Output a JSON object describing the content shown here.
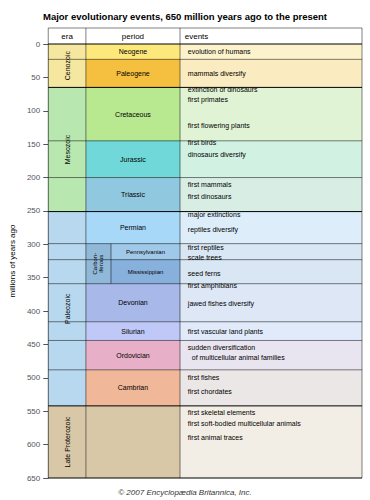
{
  "chart_data": {
    "type": "timeline",
    "title": "Major evolutionary events, 650 million years ago to the present",
    "y_label": "millions of years ago",
    "ylim": [
      0,
      650
    ],
    "yticks": [
      0,
      50,
      100,
      150,
      200,
      250,
      300,
      350,
      400,
      450,
      500,
      550,
      600,
      650
    ],
    "grid": false,
    "column_labels": [
      "era",
      "period",
      "events"
    ],
    "eras": [
      {
        "name": "Cenozoic",
        "start": 0,
        "end": 65,
        "color": "#f5e6a0"
      },
      {
        "name": "Mesozoic",
        "start": 65,
        "end": 251,
        "color": "#b8e8b0"
      },
      {
        "name": "Paleozoic",
        "start": 251,
        "end": 542,
        "color": "#b8d8f0"
      },
      {
        "name": "Late Proterozoic",
        "start": 542,
        "end": 650,
        "color": "#d8c8a8"
      }
    ],
    "periods": [
      {
        "name": "Neogene",
        "start": 0,
        "end": 23,
        "color": "#fde87c"
      },
      {
        "name": "Paleogene",
        "start": 23,
        "end": 65,
        "color": "#f5c040"
      },
      {
        "name": "Cretaceous",
        "start": 65,
        "end": 145,
        "color": "#b8e890"
      },
      {
        "name": "Jurassic",
        "start": 145,
        "end": 200,
        "color": "#70d8d8"
      },
      {
        "name": "Triassic",
        "start": 200,
        "end": 251,
        "color": "#90c8e0"
      },
      {
        "name": "Permian",
        "start": 251,
        "end": 299,
        "color": "#a8d8f8"
      },
      {
        "name": "Carbon-\niferous",
        "start": 299,
        "end": 359,
        "color": "#90b8d8",
        "subperiods": [
          {
            "name": "Pennsylvanian",
            "start": 299,
            "end": 323,
            "color": "#a0c8e8"
          },
          {
            "name": "Mississippian",
            "start": 323,
            "end": 359,
            "color": "#88b0dc"
          }
        ]
      },
      {
        "name": "Devonian",
        "start": 359,
        "end": 416,
        "color": "#a8b8e8"
      },
      {
        "name": "Silurian",
        "start": 416,
        "end": 444,
        "color": "#c0c8f8"
      },
      {
        "name": "Ordovician",
        "start": 444,
        "end": 488,
        "color": "#e8b0c8"
      },
      {
        "name": "Cambrian",
        "start": 488,
        "end": 542,
        "color": "#f0b898"
      }
    ],
    "events": [
      {
        "value": 11,
        "text": "evolution of humans"
      },
      {
        "value": 44,
        "text": "mammals diversify"
      },
      {
        "value": 68,
        "text": "extinction of dinosaurs"
      },
      {
        "value": 83,
        "text": "first primates"
      },
      {
        "value": 122,
        "text": "first flowering plants"
      },
      {
        "value": 148,
        "text": "first birds"
      },
      {
        "value": 165,
        "text": "dinosaurs diversify"
      },
      {
        "value": 210,
        "text": "first mammals"
      },
      {
        "value": 228,
        "text": "first dinosaurs"
      },
      {
        "value": 255,
        "text": "major extinctions"
      },
      {
        "value": 278,
        "text": "reptiles diversify"
      },
      {
        "value": 305,
        "text": "first reptiles"
      },
      {
        "value": 320,
        "text": "scale trees"
      },
      {
        "value": 343,
        "text": "seed ferns"
      },
      {
        "value": 362,
        "text": "first amphibians"
      },
      {
        "value": 388,
        "text": "jawed fishes diversify"
      },
      {
        "value": 430,
        "text": "first vascular land plants"
      },
      {
        "value": 455,
        "text": "sudden diversification"
      },
      {
        "value": 469,
        "text": "  of multicellular animal families"
      },
      {
        "value": 500,
        "text": "first fishes"
      },
      {
        "value": 520,
        "text": "first chordates"
      },
      {
        "value": 552,
        "text": "first skeletal elements"
      },
      {
        "value": 568,
        "text": "first soft-bodied multicellular animals"
      },
      {
        "value": 590,
        "text": "first animal traces"
      }
    ],
    "footer": "© 2007 Encyclopædia Britannica, Inc."
  }
}
